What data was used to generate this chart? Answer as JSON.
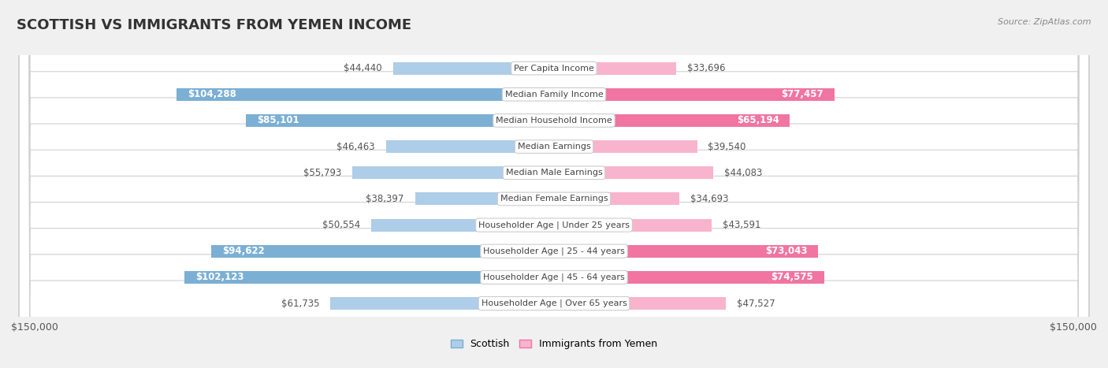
{
  "title": "SCOTTISH VS IMMIGRANTS FROM YEMEN INCOME",
  "source": "Source: ZipAtlas.com",
  "categories": [
    "Per Capita Income",
    "Median Family Income",
    "Median Household Income",
    "Median Earnings",
    "Median Male Earnings",
    "Median Female Earnings",
    "Householder Age | Under 25 years",
    "Householder Age | 25 - 44 years",
    "Householder Age | 45 - 64 years",
    "Householder Age | Over 65 years"
  ],
  "scottish_values": [
    44440,
    104288,
    85101,
    46463,
    55793,
    38397,
    50554,
    94622,
    102123,
    61735
  ],
  "yemen_values": [
    33696,
    77457,
    65194,
    39540,
    44083,
    34693,
    43591,
    73043,
    74575,
    47527
  ],
  "scottish_labels": [
    "$44,440",
    "$104,288",
    "$85,101",
    "$46,463",
    "$55,793",
    "$38,397",
    "$50,554",
    "$94,622",
    "$102,123",
    "$61,735"
  ],
  "yemen_labels": [
    "$33,696",
    "$77,457",
    "$65,194",
    "$39,540",
    "$44,083",
    "$34,693",
    "$43,591",
    "$73,043",
    "$74,575",
    "$47,527"
  ],
  "scottish_color": "#7bafd4",
  "scottish_color_light": "#aecde8",
  "yemen_color": "#f075a0",
  "yemen_color_light": "#f8b4cc",
  "max_value": 150000,
  "legend_scottish": "Scottish",
  "legend_yemen": "Immigrants from Yemen",
  "xlabel_left": "$150,000",
  "xlabel_right": "$150,000",
  "title_fontsize": 13,
  "label_fontsize": 8.5,
  "cat_fontsize": 8.0,
  "source_fontsize": 8.0,
  "inside_label_threshold": 65000,
  "row_colors": [
    "#f5f5f5",
    "#ebebeb"
  ]
}
